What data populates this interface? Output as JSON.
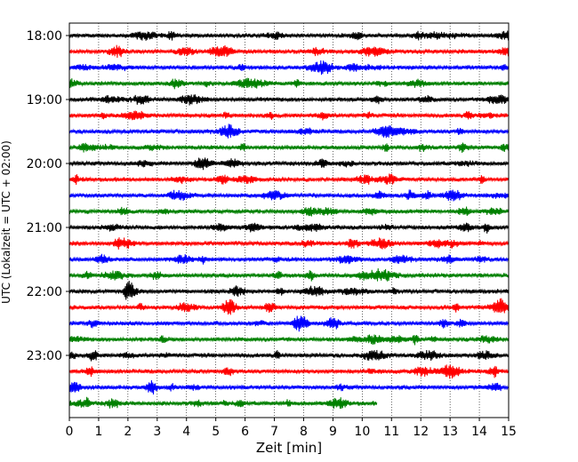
{
  "chart_data": {
    "type": "line",
    "title": "",
    "xlabel": "Zeit  [min]",
    "ylabel": "UTC (Lokalzeit = UTC + 02:00)",
    "xlim": [
      0,
      15
    ],
    "x_ticks": [
      "0",
      "1",
      "2",
      "3",
      "4",
      "5",
      "6",
      "7",
      "8",
      "9",
      "10",
      "11",
      "12",
      "13",
      "14",
      "15"
    ],
    "y_tick_labels": [
      "18:00",
      "19:00",
      "20:00",
      "21:00",
      "22:00",
      "23:00"
    ],
    "grid": "vertical dotted",
    "legend": "none",
    "trace_colors": [
      "#000000",
      "#ff0000",
      "#0000ff",
      "#008000"
    ],
    "traces": [
      {
        "start": "18:00",
        "duration_min": 15
      },
      {
        "start": "18:15",
        "duration_min": 15
      },
      {
        "start": "18:30",
        "duration_min": 15
      },
      {
        "start": "18:45",
        "duration_min": 15
      },
      {
        "start": "19:00",
        "duration_min": 15
      },
      {
        "start": "19:15",
        "duration_min": 15
      },
      {
        "start": "19:30",
        "duration_min": 15
      },
      {
        "start": "19:45",
        "duration_min": 15
      },
      {
        "start": "20:00",
        "duration_min": 15
      },
      {
        "start": "20:15",
        "duration_min": 15
      },
      {
        "start": "20:30",
        "duration_min": 15
      },
      {
        "start": "20:45",
        "duration_min": 15
      },
      {
        "start": "21:00",
        "duration_min": 15
      },
      {
        "start": "21:15",
        "duration_min": 15
      },
      {
        "start": "21:30",
        "duration_min": 15
      },
      {
        "start": "21:45",
        "duration_min": 15
      },
      {
        "start": "22:00",
        "duration_min": 15
      },
      {
        "start": "22:15",
        "duration_min": 15
      },
      {
        "start": "22:30",
        "duration_min": 15
      },
      {
        "start": "22:45",
        "duration_min": 15
      },
      {
        "start": "23:00",
        "duration_min": 15
      },
      {
        "start": "23:15",
        "duration_min": 15
      },
      {
        "start": "23:30",
        "duration_min": 15
      },
      {
        "start": "23:45",
        "duration_min": 10.5
      }
    ]
  }
}
